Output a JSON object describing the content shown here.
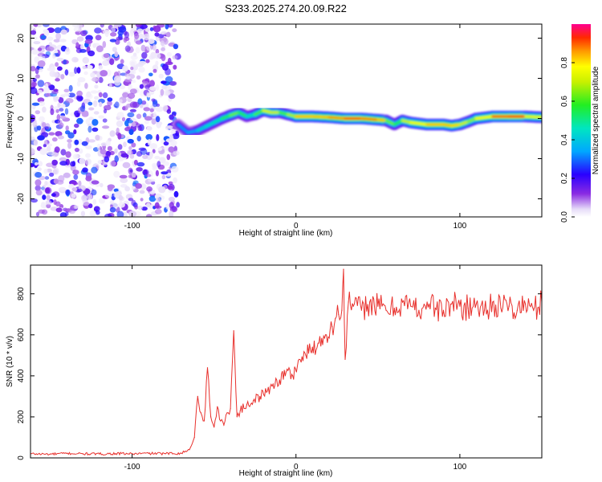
{
  "figure": {
    "title": "S233.2025.274.20.09.R22"
  },
  "chart_data": [
    {
      "type": "heatmap",
      "name": "spectrogram",
      "xlabel": "Height of straight line (km)",
      "ylabel": "Frequency (Hz)",
      "xlim": [
        -162,
        150
      ],
      "ylim": [
        -24.5,
        23.5
      ],
      "x_ticks": [
        -100,
        0,
        100
      ],
      "y_ticks": [
        -20,
        -10,
        0,
        10,
        20
      ],
      "colorbar": {
        "label": "Normalized spectral amplitude",
        "range": [
          0.0,
          1.0
        ],
        "ticks": [
          0.0,
          0.2,
          0.4,
          0.6,
          0.8
        ],
        "tick_labels": [
          "0.0",
          "0.2",
          "0.4",
          "0.6",
          "0.8"
        ]
      },
      "noise_region": {
        "x_range": [
          -162,
          -72
        ],
        "amplitude_range": [
          0.02,
          0.3
        ]
      },
      "signal_ridge": {
        "x": [
          -72,
          -66,
          -60,
          -55,
          -50,
          -45,
          -40,
          -35,
          -30,
          -25,
          -20,
          -15,
          -10,
          -5,
          0,
          10,
          20,
          30,
          40,
          50,
          55,
          60,
          65,
          70,
          80,
          90,
          95,
          100,
          105,
          110,
          120,
          130,
          140,
          150
        ],
        "frequency": [
          -1.5,
          -3.5,
          -3.0,
          -2.0,
          -1.0,
          0.0,
          0.8,
          1.5,
          0.5,
          1.0,
          2.0,
          1.5,
          1.5,
          1.0,
          0.5,
          0.5,
          0.3,
          0.0,
          0.0,
          -0.3,
          -0.5,
          -1.5,
          -0.5,
          -1.0,
          -1.5,
          -1.5,
          -1.8,
          -1.5,
          -0.8,
          0.0,
          0.5,
          0.5,
          0.5,
          0.3
        ],
        "amplitude": [
          0.35,
          0.3,
          0.4,
          0.45,
          0.45,
          0.5,
          0.6,
          0.65,
          0.45,
          0.5,
          0.7,
          0.75,
          0.65,
          0.55,
          0.8,
          0.85,
          0.8,
          0.92,
          0.9,
          0.85,
          0.8,
          0.45,
          0.65,
          0.75,
          0.8,
          0.85,
          0.8,
          0.82,
          0.6,
          0.7,
          0.85,
          0.95,
          0.9,
          0.6
        ]
      }
    },
    {
      "type": "line",
      "name": "snr",
      "xlabel": "Height of straight line (km)",
      "ylabel": "SNR (10 * v/v)",
      "xlim": [
        -162,
        150
      ],
      "ylim": [
        0,
        940
      ],
      "x_ticks": [
        -100,
        0,
        100
      ],
      "y_ticks": [
        0,
        200,
        400,
        600,
        800
      ],
      "line_color": "#e8302c",
      "series": [
        {
          "name": "SNR",
          "x": [
            -162,
            -150,
            -140,
            -130,
            -120,
            -110,
            -100,
            -90,
            -80,
            -70,
            -65,
            -62,
            -60,
            -58,
            -56,
            -54,
            -52,
            -50,
            -48,
            -46,
            -44,
            -42,
            -40,
            -38,
            -36,
            -34,
            -30,
            -26,
            -22,
            -18,
            -14,
            -10,
            -6,
            -2,
            2,
            6,
            10,
            14,
            18,
            22,
            24,
            26,
            28,
            29,
            30,
            32,
            35,
            40,
            45,
            50,
            55,
            60,
            65,
            70,
            75,
            80,
            85,
            90,
            95,
            100,
            105,
            110,
            115,
            120,
            125,
            130,
            135,
            140,
            145,
            150
          ],
          "y": [
            20,
            18,
            22,
            20,
            19,
            21,
            20,
            22,
            21,
            23,
            40,
            100,
            300,
            220,
            180,
            440,
            200,
            150,
            250,
            180,
            160,
            220,
            240,
            620,
            200,
            230,
            260,
            280,
            300,
            320,
            360,
            380,
            420,
            400,
            480,
            500,
            540,
            560,
            600,
            640,
            680,
            700,
            720,
            920,
            480,
            760,
            740,
            720,
            760,
            740,
            720,
            730,
            760,
            740,
            720,
            760,
            730,
            720,
            750,
            740,
            730,
            750,
            720,
            760,
            730,
            740,
            720,
            750,
            720,
            760
          ]
        }
      ]
    }
  ]
}
